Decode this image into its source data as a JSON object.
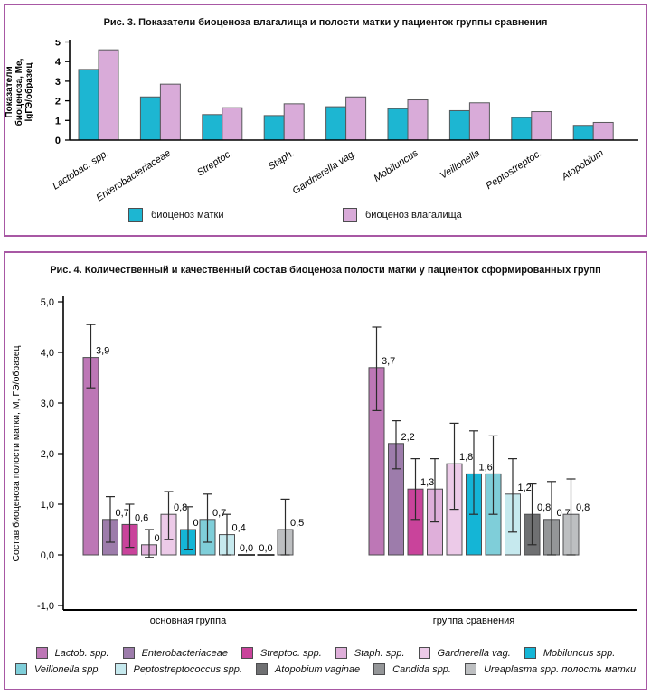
{
  "page": {
    "panel_border_color": "#a858a4",
    "background": "#ffffff"
  },
  "chart_data": [
    {
      "id": "fig3",
      "type": "bar",
      "title": "Рис. 3. Показатели биоценоза влагалища и полости матки у пациенток группы сравнения",
      "ylabel_lines": [
        "Показатели",
        "биоценоза, Ме,",
        "lgГЭ/образец"
      ],
      "ylim": [
        0,
        5
      ],
      "yticks": [
        {
          "v": 5,
          "label": "5"
        },
        {
          "v": 4,
          "label": "4"
        },
        {
          "v": 3,
          "label": "3"
        },
        {
          "v": 2,
          "label": "2"
        },
        {
          "v": 1,
          "label": "1"
        },
        {
          "v": 0,
          "label": "0"
        }
      ],
      "categories": [
        "Lactobac. spp.",
        "Enterobacteriaceae",
        "Streptoc.",
        "Staph.",
        "Gardnerella vag.",
        "Mobiluncus",
        "Veillonella",
        "Peptostreptoc.",
        "Atopobium"
      ],
      "series": [
        {
          "name": "биоценоз матки",
          "color": "#1db6d2",
          "values": [
            3.6,
            2.2,
            1.3,
            1.25,
            1.7,
            1.6,
            1.5,
            1.15,
            0.75
          ]
        },
        {
          "name": "биоценоз влагалища",
          "color": "#d9abd9",
          "values": [
            4.6,
            2.85,
            1.65,
            1.85,
            2.2,
            2.05,
            1.9,
            1.45,
            0.9
          ]
        }
      ],
      "legend_position": "bottom",
      "grid": false
    },
    {
      "id": "fig4",
      "type": "bar",
      "error_bars": true,
      "title": "Рис. 4. Количественный и качественный состав биоценоза полости матки у пациенток сформированных групп",
      "ylabel": "Состав биоценоза полости матки, М, ГЭ/образец",
      "ylim": [
        -1,
        5
      ],
      "yticks": [
        {
          "v": 5,
          "label": "5,0"
        },
        {
          "v": 4,
          "label": "4,0"
        },
        {
          "v": 3,
          "label": "3,0"
        },
        {
          "v": 2,
          "label": "2,0"
        },
        {
          "v": 1,
          "label": "1,0"
        },
        {
          "v": 0,
          "label": "0,0"
        },
        {
          "v": -1,
          "label": "-1,0"
        }
      ],
      "species_legend": [
        {
          "name": "Lactob. spp.",
          "color": "#bd77b6"
        },
        {
          "name": "Enterobacteriaceae",
          "color": "#9d7cab"
        },
        {
          "name": "Streptoc. spp.",
          "color": "#c9439b"
        },
        {
          "name": "Staph. spp.",
          "color": "#dfafda"
        },
        {
          "name": "Gardnerella vag.",
          "color": "#eccae8"
        },
        {
          "name": "Mobiluncus spp.",
          "color": "#14b5d6"
        },
        {
          "name": "Veillonella spp.",
          "color": "#7fced9"
        },
        {
          "name": "Peptostreptococcus spp.",
          "color": "#c6e9ee"
        },
        {
          "name": "Atopobium vaginae",
          "color": "#6f7072"
        },
        {
          "name": "Candida spp.",
          "color": "#949698"
        },
        {
          "name": "Ureaplasma spp. полость матки",
          "color": "#bdbfc1"
        }
      ],
      "groups": [
        {
          "label": "основная группа",
          "bars": [
            {
              "species_index": 0,
              "value": 3.9,
              "label": "3,9",
              "lo": 3.3,
              "hi": 4.55
            },
            {
              "species_index": 1,
              "value": 0.7,
              "label": "0,7",
              "lo": 0.25,
              "hi": 1.15
            },
            {
              "species_index": 2,
              "value": 0.6,
              "label": "0,6",
              "lo": 0.15,
              "hi": 1.0
            },
            {
              "species_index": 3,
              "value": 0.2,
              "label": "0,2",
              "lo": -0.05,
              "hi": 0.5
            },
            {
              "species_index": 4,
              "value": 0.8,
              "label": "0,8",
              "lo": 0.3,
              "hi": 1.25
            },
            {
              "species_index": 5,
              "value": 0.5,
              "label": "0,5",
              "lo": 0.1,
              "hi": 0.95
            },
            {
              "species_index": 6,
              "value": 0.7,
              "label": "0,7",
              "lo": 0.25,
              "hi": 1.2
            },
            {
              "species_index": 7,
              "value": 0.4,
              "label": "0,4",
              "lo": 0.0,
              "hi": 0.8
            },
            {
              "species_index": 8,
              "value": 0.0,
              "label": "0,0"
            },
            {
              "species_index": 9,
              "value": 0.0,
              "label": "0,0"
            },
            {
              "species_index": 10,
              "value": 0.5,
              "label": "0,5",
              "lo": 0.0,
              "hi": 1.1
            }
          ]
        },
        {
          "label": "группа сравнения",
          "bars": [
            {
              "species_index": 0,
              "value": 3.7,
              "label": "3,7",
              "lo": 2.85,
              "hi": 4.5
            },
            {
              "species_index": 1,
              "value": 2.2,
              "label": "2,2",
              "lo": 1.7,
              "hi": 2.65
            },
            {
              "species_index": 2,
              "value": 1.3,
              "label": "1,3",
              "lo": 0.7,
              "hi": 1.9
            },
            {
              "species_index": 3,
              "value": 1.3,
              "label": "",
              "lo": 0.65,
              "hi": 1.9
            },
            {
              "species_index": 4,
              "value": 1.8,
              "label": "1,8",
              "lo": 0.9,
              "hi": 2.6
            },
            {
              "species_index": 5,
              "value": 1.6,
              "label": "1,6",
              "lo": 0.8,
              "hi": 2.45
            },
            {
              "species_index": 6,
              "value": 1.6,
              "label": "",
              "lo": 0.8,
              "hi": 2.35
            },
            {
              "species_index": 7,
              "value": 1.2,
              "label": "1,2",
              "lo": 0.45,
              "hi": 1.9
            },
            {
              "species_index": 8,
              "value": 0.8,
              "label": "0,8",
              "lo": 0.2,
              "hi": 1.4
            },
            {
              "species_index": 9,
              "value": 0.7,
              "label": "0,7",
              "lo": 0.0,
              "hi": 1.45
            },
            {
              "species_index": 10,
              "value": 0.8,
              "label": "0,8",
              "lo": 0.0,
              "hi": 1.5
            }
          ]
        }
      ],
      "grid": false
    }
  ]
}
